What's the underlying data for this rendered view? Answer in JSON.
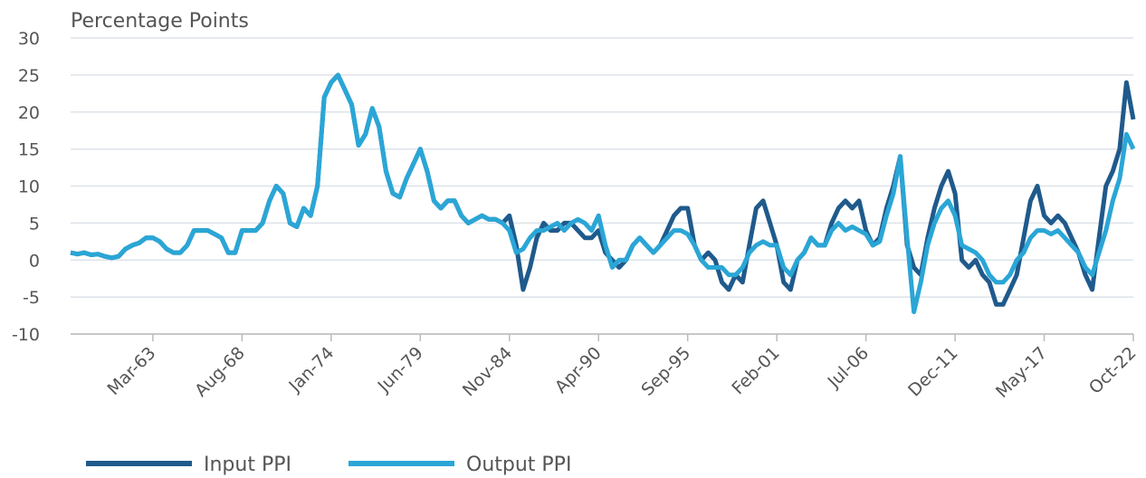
{
  "chart_data": {
    "type": "line",
    "title": "Percentage Points",
    "categories": [
      null,
      null,
      null,
      null,
      null,
      null,
      null,
      null,
      null,
      null,
      null,
      null,
      "Mar-63",
      null,
      null,
      null,
      null,
      null,
      null,
      null,
      null,
      null,
      null,
      null,
      null,
      "Aug-68",
      null,
      null,
      null,
      null,
      null,
      null,
      null,
      null,
      null,
      null,
      null,
      null,
      "Jan-74",
      null,
      null,
      null,
      null,
      null,
      null,
      null,
      null,
      null,
      null,
      null,
      null,
      "Jun-79",
      null,
      null,
      null,
      null,
      null,
      null,
      null,
      null,
      null,
      null,
      null,
      null,
      "Nov-84",
      null,
      null,
      null,
      null,
      null,
      null,
      null,
      null,
      null,
      null,
      null,
      null,
      "Apr-90",
      null,
      null,
      null,
      null,
      null,
      null,
      null,
      null,
      null,
      null,
      null,
      null,
      "Sep-95",
      null,
      null,
      null,
      null,
      null,
      null,
      null,
      null,
      null,
      null,
      null,
      null,
      "Feb-01",
      null,
      null,
      null,
      null,
      null,
      null,
      null,
      null,
      null,
      null,
      null,
      null,
      "Jul-06",
      null,
      null,
      null,
      null,
      null,
      null,
      null,
      null,
      null,
      null,
      null,
      null,
      "Dec-11",
      null,
      null,
      null,
      null,
      null,
      null,
      null,
      null,
      null,
      null,
      null,
      null,
      "May-17",
      null,
      null,
      null,
      null,
      null,
      null,
      null,
      null,
      null,
      null,
      null,
      null,
      "Oct-22"
    ],
    "series": [
      {
        "name": "Input PPI",
        "color": "#1f5a8c",
        "values": [
          1,
          0.8,
          1,
          0.7,
          0.8,
          0.5,
          0.3,
          0.5,
          1.5,
          2,
          2.3,
          3,
          3,
          2.5,
          1.5,
          1,
          1,
          2,
          4,
          4,
          4,
          3.5,
          3,
          1,
          1,
          4,
          4,
          4,
          5,
          8,
          10,
          9,
          5,
          4.5,
          7,
          6,
          10,
          22,
          24,
          25,
          23,
          21,
          15.5,
          17,
          20.5,
          18,
          12,
          9,
          8.5,
          11,
          13,
          15,
          12,
          8,
          7,
          8,
          8,
          6,
          5,
          5.5,
          6,
          5.5,
          5.5,
          5,
          6,
          2,
          -4,
          -1,
          3,
          5,
          4,
          4,
          5,
          5,
          4,
          3,
          3,
          4,
          1,
          0,
          -1,
          0,
          2,
          3,
          2,
          1,
          2,
          4,
          6,
          7,
          7,
          2,
          0,
          1,
          0,
          -3,
          -4,
          -2,
          -3,
          2,
          7,
          8,
          5,
          2,
          -3,
          -4,
          0,
          1,
          3,
          2,
          2,
          5,
          7,
          8,
          7,
          8,
          4,
          2,
          3,
          7,
          10,
          14,
          2,
          -1,
          -2,
          3,
          7,
          10,
          12,
          9,
          0,
          -1,
          0,
          -2,
          -3,
          -6,
          -6,
          -4,
          -2,
          3,
          8,
          10,
          6,
          5,
          6,
          5,
          3,
          1,
          -2,
          -4,
          3,
          10,
          12,
          15,
          24,
          19
        ]
      },
      {
        "name": "Output PPI",
        "color": "#2aa6d6",
        "values": [
          1,
          0.8,
          1,
          0.7,
          0.8,
          0.5,
          0.3,
          0.5,
          1.5,
          2,
          2.3,
          3,
          3,
          2.5,
          1.5,
          1,
          1,
          2,
          4,
          4,
          4,
          3.5,
          3,
          1,
          1,
          4,
          4,
          4,
          5,
          8,
          10,
          9,
          5,
          4.5,
          7,
          6,
          10,
          22,
          24,
          25,
          23,
          21,
          15.5,
          17,
          20.5,
          18,
          12,
          9,
          8.5,
          11,
          13,
          15,
          12,
          8,
          7,
          8,
          8,
          6,
          5,
          5.5,
          6,
          5.5,
          5.5,
          5,
          4,
          1,
          1.5,
          3,
          4,
          4,
          4.5,
          5,
          4,
          5,
          5.5,
          5,
          4,
          6,
          2,
          -1,
          0,
          0,
          2,
          3,
          2,
          1,
          2,
          3,
          4,
          4,
          3.5,
          2,
          0,
          -1,
          -1,
          -1,
          -2,
          -2,
          -1,
          1,
          2,
          2.5,
          2,
          2,
          -1,
          -2,
          0,
          1,
          3,
          2,
          2,
          4,
          5,
          4,
          4.5,
          4,
          3.5,
          2,
          2.5,
          6,
          9,
          14,
          3,
          -7,
          -3,
          2,
          5,
          7,
          8,
          6,
          2,
          1.5,
          1,
          0,
          -2,
          -3,
          -3,
          -2,
          0,
          1,
          3,
          4,
          4,
          3.5,
          4,
          3,
          2,
          1,
          -1,
          -2,
          1,
          4,
          8,
          11,
          17,
          15
        ]
      }
    ],
    "ylim": [
      -10,
      30
    ],
    "yticks": [
      -10,
      -5,
      0,
      5,
      10,
      15,
      20,
      25,
      30
    ],
    "grid": true
  }
}
